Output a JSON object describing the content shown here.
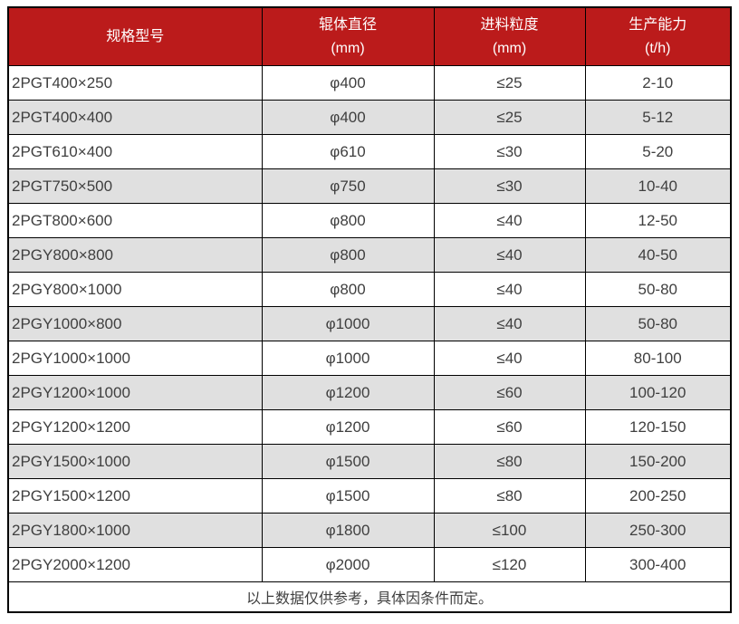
{
  "table": {
    "columns": [
      {
        "label": "规格型号",
        "unit": ""
      },
      {
        "label": "辊体直径",
        "unit": "(mm)"
      },
      {
        "label": "进料粒度",
        "unit": "(mm)"
      },
      {
        "label": "生产能力",
        "unit": "(t/h)"
      }
    ],
    "rows": [
      [
        "2PGT400×250",
        "φ400",
        "≤25",
        "2-10"
      ],
      [
        "2PGT400×400",
        "φ400",
        "≤25",
        "5-12"
      ],
      [
        "2PGT610×400",
        "φ610",
        "≤30",
        "5-20"
      ],
      [
        "2PGT750×500",
        "φ750",
        "≤30",
        "10-40"
      ],
      [
        "2PGT800×600",
        "φ800",
        "≤40",
        "12-50"
      ],
      [
        "2PGY800×800",
        "φ800",
        "≤40",
        "40-50"
      ],
      [
        "2PGY800×1000",
        "φ800",
        "≤40",
        "50-80"
      ],
      [
        "2PGY1000×800",
        "φ1000",
        "≤40",
        "50-80"
      ],
      [
        "2PGY1000×1000",
        "φ1000",
        "≤40",
        "80-100"
      ],
      [
        "2PGY1200×1000",
        "φ1200",
        "≤60",
        "100-120"
      ],
      [
        "2PGY1200×1200",
        "φ1200",
        "≤60",
        "120-150"
      ],
      [
        "2PGY1500×1000",
        "φ1500",
        "≤80",
        "150-200"
      ],
      [
        "2PGY1500×1200",
        "φ1500",
        "≤80",
        "200-250"
      ],
      [
        "2PGY1800×1000",
        "φ1800",
        "≤100",
        "250-300"
      ],
      [
        "2PGY2000×1200",
        "φ2000",
        "≤120",
        "300-400"
      ]
    ],
    "footer_note": "以上数据仅供参考，具体因条件而定。"
  },
  "colors": {
    "header_bg": "#BB1B1B",
    "header_text": "#FFFFFF",
    "row_bg": "#FFFFFF",
    "row_alt_bg": "#E0E0E0",
    "row_text": "#3F3F3F",
    "border": "#000000"
  }
}
